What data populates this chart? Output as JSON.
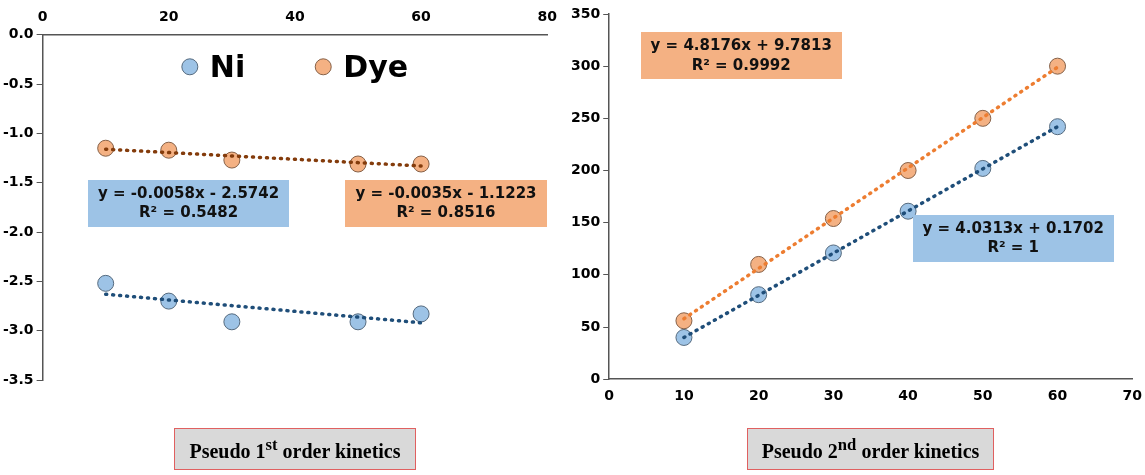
{
  "chart_data": [
    {
      "type": "scatter",
      "title": "Pseudo 1$^{st}$ order kinetics",
      "xlim": [
        0,
        80
      ],
      "xticks": [
        0,
        20,
        40,
        60,
        80
      ],
      "ylim": [
        -3.5,
        0
      ],
      "yticks": [
        {
          "value": 0,
          "label": "0.0"
        },
        -0.5,
        {
          "value": -1,
          "label": "-1.0"
        },
        -1.5,
        {
          "value": -2,
          "label": "-2.0"
        },
        -2.5,
        {
          "value": -3,
          "label": "-3.0"
        },
        -3.5
      ],
      "legend": "top",
      "marker": "circle",
      "grid": false,
      "annotations": [
        "y = -0.0058x - 2.5742\nR² = 0.5482",
        "y = -0.0035x - 1.1223\nR² = 0.8516"
      ],
      "series": [
        {
          "name": "Ni",
          "color": "#9dc3e6",
          "x": [
            10,
            20,
            30,
            50,
            60
          ],
          "values": [
            -2.52,
            -2.7,
            -2.91,
            -2.91,
            -2.83
          ]
        },
        {
          "name": "Dye",
          "color": "#f4b183",
          "x": [
            10,
            20,
            30,
            50,
            60
          ],
          "values": [
            -1.15,
            -1.17,
            -1.27,
            -1.31,
            -1.31
          ]
        },
        {
          "type": "line",
          "color": "#1f4e79",
          "line_style": "dotted",
          "marker": "none",
          "x": [
            10,
            60
          ],
          "values": [
            -2.63,
            -2.92
          ]
        },
        {
          "type": "line",
          "color": "#843c0c",
          "line_style": "dotted",
          "marker": "none",
          "x": [
            10,
            60
          ],
          "values": [
            -1.16,
            -1.33
          ]
        }
      ]
    },
    {
      "type": "scatter",
      "title": "Pseudo 2$^{nd}$ order kinetics",
      "xlim": [
        0,
        70
      ],
      "xticks": [
        0,
        10,
        20,
        30,
        40,
        50,
        60,
        70
      ],
      "ylim": [
        0,
        350
      ],
      "yticks": [
        0,
        50,
        100,
        150,
        200,
        250,
        300,
        350
      ],
      "legend": false,
      "marker": "circle",
      "grid": false,
      "annotations": [
        "y = 4.8176x + 9.7813\nR² = 0.9992",
        "y = 4.0313x + 0.1702\nR² = 1"
      ],
      "series": [
        {
          "color": "#f4b183",
          "x": [
            10,
            20,
            30,
            40,
            50,
            60
          ],
          "values": [
            56,
            110,
            154,
            200,
            250,
            300
          ]
        },
        {
          "color": "#9dc3e6",
          "x": [
            10,
            20,
            30,
            40,
            50,
            60
          ],
          "values": [
            40,
            81,
            121,
            161,
            202,
            242
          ]
        },
        {
          "type": "line",
          "color": "#ed7d31",
          "line_style": "dotted",
          "marker": "none",
          "x": [
            10,
            60
          ],
          "values": [
            58,
            299
          ]
        },
        {
          "type": "line",
          "color": "#1f4e79",
          "line_style": "dotted",
          "marker": "none",
          "x": [
            10,
            60
          ],
          "values": [
            40,
            242
          ]
        }
      ]
    }
  ]
}
